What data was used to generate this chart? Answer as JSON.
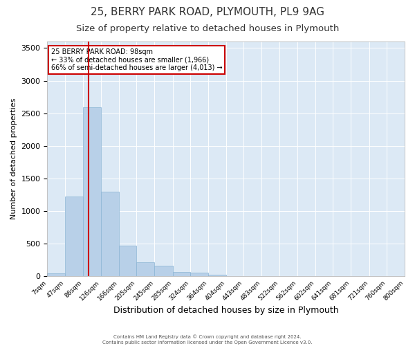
{
  "title": "25, BERRY PARK ROAD, PLYMOUTH, PL9 9AG",
  "subtitle": "Size of property relative to detached houses in Plymouth",
  "xlabel": "Distribution of detached houses by size in Plymouth",
  "ylabel": "Number of detached properties",
  "footer_line1": "Contains HM Land Registry data © Crown copyright and database right 2024.",
  "footer_line2": "Contains public sector information licensed under the Open Government Licence v3.0.",
  "annotation_title": "25 BERRY PARK ROAD: 98sqm",
  "annotation_line2": "← 33% of detached houses are smaller (1,966)",
  "annotation_line3": "66% of semi-detached houses are larger (4,013) →",
  "property_size": 98,
  "bin_edges": [
    7,
    47,
    86,
    126,
    166,
    205,
    245,
    285,
    324,
    364,
    404,
    443,
    483,
    522,
    562,
    602,
    641,
    681,
    721,
    760,
    800
  ],
  "bin_labels": [
    "7sqm",
    "47sqm",
    "86sqm",
    "126sqm",
    "166sqm",
    "205sqm",
    "245sqm",
    "285sqm",
    "324sqm",
    "364sqm",
    "404sqm",
    "443sqm",
    "483sqm",
    "522sqm",
    "562sqm",
    "602sqm",
    "641sqm",
    "681sqm",
    "721sqm",
    "760sqm",
    "800sqm"
  ],
  "counts": [
    50,
    1220,
    2590,
    1300,
    470,
    220,
    160,
    70,
    55,
    30,
    0,
    0,
    0,
    0,
    0,
    0,
    0,
    0,
    0,
    0
  ],
  "bar_color": "#b8d0e8",
  "bar_edge_color": "#8ab4d4",
  "vline_color": "#cc0000",
  "vline_x": 98,
  "annotation_box_color": "#cc0000",
  "plot_bg_color": "#dce9f5",
  "ylim": [
    0,
    3600
  ],
  "yticks": [
    0,
    500,
    1000,
    1500,
    2000,
    2500,
    3000,
    3500
  ],
  "title_fontsize": 11,
  "subtitle_fontsize": 9.5,
  "xlabel_fontsize": 9,
  "ylabel_fontsize": 8
}
